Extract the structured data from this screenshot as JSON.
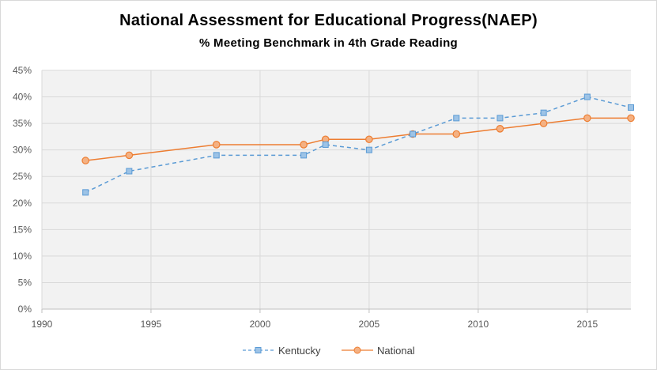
{
  "chart_data": {
    "type": "line",
    "title": "National Assessment for Educational Progress(NAEP)",
    "subtitle": "% Meeting Benchmark  in 4th Grade Reading",
    "xlabel": "",
    "ylabel": "",
    "xlim": [
      1990,
      2017
    ],
    "ylim": [
      0,
      45
    ],
    "x_ticks": [
      "1990",
      "1995",
      "2000",
      "2005",
      "2010",
      "2015"
    ],
    "x_tick_values": [
      1990,
      1995,
      2000,
      2005,
      2010,
      2015
    ],
    "y_ticks": [
      "0%",
      "5%",
      "10%",
      "15%",
      "20%",
      "25%",
      "30%",
      "35%",
      "40%",
      "45%"
    ],
    "y_tick_values": [
      0,
      5,
      10,
      15,
      20,
      25,
      30,
      35,
      40,
      45
    ],
    "grid": true,
    "legend_position": "bottom",
    "series": [
      {
        "name": "Kentucky",
        "color": "#5b9bd5",
        "line_style": "dashed",
        "marker": "square",
        "x": [
          1992,
          1994,
          1998,
          2002,
          2003,
          2005,
          2007,
          2009,
          2011,
          2013,
          2015,
          2017
        ],
        "values": [
          22,
          26,
          29,
          29,
          31,
          30,
          33,
          36,
          36,
          37,
          40,
          38
        ]
      },
      {
        "name": "National",
        "color": "#ed7d31",
        "line_style": "solid",
        "marker": "circle",
        "x": [
          1992,
          1994,
          1998,
          2002,
          2003,
          2005,
          2007,
          2009,
          2011,
          2013,
          2015,
          2017
        ],
        "values": [
          28,
          29,
          31,
          31,
          32,
          32,
          33,
          33,
          34,
          35,
          36,
          36
        ]
      }
    ]
  }
}
